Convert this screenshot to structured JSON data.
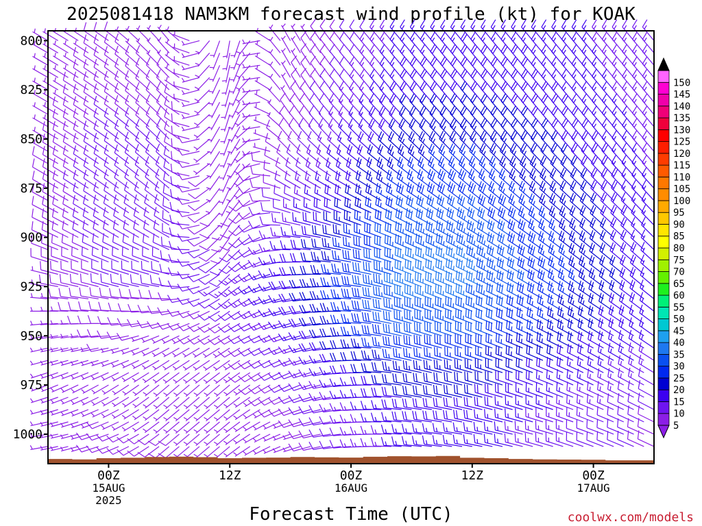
{
  "chart_data": {
    "type": "wind barb time-height profile",
    "title": "2025081418 NAM3KM forecast wind profile (kt) for KOAK",
    "xlabel": "Forecast Time (UTC)",
    "credit": "coolwx.com/models",
    "units": "kt",
    "y_axis": {
      "quantity": "pressure (hPa)",
      "range": [
        1015,
        795
      ],
      "ticks": [
        800,
        825,
        850,
        875,
        900,
        925,
        950,
        975,
        1000
      ]
    },
    "x_axis": {
      "range_hours_from_init": [
        0,
        60
      ],
      "ticks": [
        {
          "hour": 6,
          "lines": [
            "00Z",
            "15AUG",
            "2025"
          ]
        },
        {
          "hour": 18,
          "lines": [
            "12Z"
          ]
        },
        {
          "hour": 30,
          "lines": [
            "00Z",
            "16AUG"
          ]
        },
        {
          "hour": 42,
          "lines": [
            "12Z"
          ]
        },
        {
          "hour": 54,
          "lines": [
            "00Z",
            "17AUG"
          ]
        }
      ]
    },
    "surface_pressure_hPa": [
      1012.6,
      1012.8,
      1012.2,
      1012.0,
      1011.6,
      1011.4,
      1011.7,
      1012.2,
      1012.0,
      1011.9,
      1011.6,
      1011.8,
      1011.9,
      1011.5,
      1011.2,
      1011.3,
      1011.1,
      1012.0,
      1012.2,
      1012.6,
      1012.8,
      1012.9,
      1013.0,
      1013.3,
      1013.3
    ],
    "colorbar": {
      "levels": [
        5,
        10,
        15,
        20,
        25,
        30,
        35,
        40,
        45,
        50,
        55,
        60,
        65,
        70,
        75,
        80,
        85,
        90,
        95,
        100,
        105,
        110,
        115,
        120,
        125,
        130,
        135,
        140,
        145,
        150
      ],
      "colors": [
        "#8c1ee6",
        "#6e14f0",
        "#3c00f0",
        "#0000d2",
        "#0028f0",
        "#0a50f0",
        "#1e78f0",
        "#1ea0f0",
        "#00c8d2",
        "#00e6b4",
        "#00f078",
        "#1ef01e",
        "#64f000",
        "#a0f000",
        "#d2f000",
        "#ffff00",
        "#ffe600",
        "#ffc800",
        "#ffaa00",
        "#ff8c00",
        "#ff7800",
        "#ff5a00",
        "#ff3c00",
        "#ff1e00",
        "#ff0000",
        "#f0003c",
        "#f00078",
        "#f000aa",
        "#ff00d2",
        "#ff64ff"
      ]
    },
    "speed_field_kt": {
      "description": "approximate wind speed read from barbs; pressure rows x forecast-hour columns",
      "pressure": [
        800,
        825,
        850,
        875,
        900,
        925,
        950,
        975,
        1000
      ],
      "hours": [
        0,
        6,
        12,
        18,
        24,
        30,
        36,
        42,
        48,
        54,
        60
      ],
      "values": [
        [
          5,
          8,
          6,
          4,
          6,
          10,
          16,
          17,
          17,
          15,
          13
        ],
        [
          6,
          9,
          8,
          4,
          7,
          12,
          18,
          19,
          18,
          16,
          13
        ],
        [
          7,
          11,
          10,
          5,
          8,
          15,
          22,
          23,
          21,
          18,
          14
        ],
        [
          8,
          12,
          12,
          6,
          10,
          18,
          27,
          28,
          24,
          20,
          15
        ],
        [
          8,
          11,
          12,
          8,
          14,
          24,
          33,
          34,
          28,
          22,
          16
        ],
        [
          7,
          10,
          10,
          13,
          18,
          28,
          37,
          37,
          30,
          24,
          17
        ],
        [
          6,
          8,
          7,
          8,
          14,
          24,
          32,
          32,
          26,
          21,
          16
        ],
        [
          5,
          6,
          5,
          5,
          10,
          16,
          22,
          22,
          18,
          15,
          12
        ],
        [
          5,
          8,
          8,
          5,
          6,
          12,
          16,
          17,
          14,
          12,
          9
        ]
      ]
    },
    "direction_field_deg": {
      "description": "approximate direction wind blows from (deg); same grid as speed_field_kt",
      "pressure": [
        800,
        825,
        850,
        875,
        900,
        925,
        950,
        975,
        1000
      ],
      "hours": [
        0,
        6,
        12,
        18,
        24,
        30,
        36,
        42,
        48,
        54,
        60
      ],
      "values": [
        [
          300,
          305,
          320,
          190,
          330,
          320,
          320,
          320,
          320,
          320,
          320
        ],
        [
          300,
          305,
          315,
          195,
          330,
          320,
          320,
          320,
          320,
          320,
          320
        ],
        [
          300,
          305,
          315,
          200,
          320,
          315,
          315,
          318,
          320,
          320,
          320
        ],
        [
          300,
          305,
          310,
          205,
          300,
          300,
          305,
          310,
          312,
          315,
          318
        ],
        [
          295,
          300,
          300,
          215,
          275,
          285,
          295,
          300,
          305,
          310,
          315
        ],
        [
          280,
          285,
          280,
          230,
          260,
          275,
          290,
          295,
          300,
          305,
          310
        ],
        [
          260,
          265,
          245,
          240,
          250,
          270,
          285,
          290,
          295,
          300,
          305
        ],
        [
          250,
          240,
          230,
          230,
          245,
          265,
          280,
          285,
          290,
          295,
          300
        ],
        [
          260,
          250,
          230,
          230,
          250,
          265,
          275,
          280,
          285,
          290,
          295
        ]
      ]
    }
  }
}
